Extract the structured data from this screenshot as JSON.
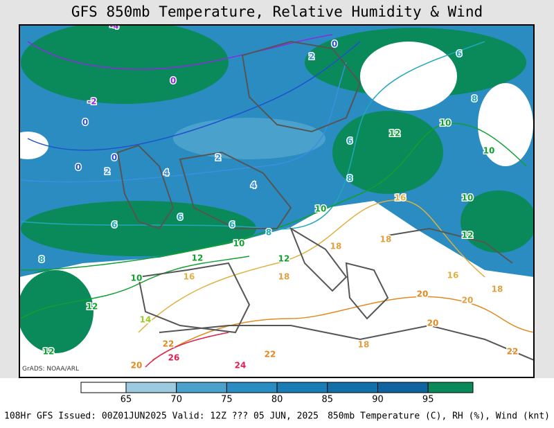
{
  "header": {
    "title": "GFS 850mb Temperature, Relative Humidity & Wind"
  },
  "map": {
    "credit": "GrADS: NOAA/ARL",
    "contour_labels": [
      {
        "text": "-4",
        "color": "#8a2be2"
      },
      {
        "text": "0",
        "color": "#8a2be2"
      },
      {
        "text": "-2",
        "color": "#8a2be2"
      },
      {
        "text": "0",
        "color": "#1e50d0"
      },
      {
        "text": "0",
        "color": "#1e50d0"
      },
      {
        "text": "0",
        "color": "#1e50d0"
      },
      {
        "text": "2",
        "color": "#3a90e0"
      },
      {
        "text": "4",
        "color": "#3a90e0"
      },
      {
        "text": "2",
        "color": "#3a90e0"
      },
      {
        "text": "4",
        "color": "#3a90e0"
      },
      {
        "text": "6",
        "color": "#20a8b8"
      },
      {
        "text": "6",
        "color": "#20a8b8"
      },
      {
        "text": "6",
        "color": "#20a8b8"
      },
      {
        "text": "8",
        "color": "#20a8b8"
      },
      {
        "text": "10",
        "color": "#10a030"
      },
      {
        "text": "12",
        "color": "#10a030"
      },
      {
        "text": "8",
        "color": "#20a8b8"
      },
      {
        "text": "10",
        "color": "#10a030"
      },
      {
        "text": "12",
        "color": "#10a030"
      },
      {
        "text": "14",
        "color": "#a0c820"
      },
      {
        "text": "12",
        "color": "#10a030"
      },
      {
        "text": "16",
        "color": "#e0b040"
      },
      {
        "text": "16",
        "color": "#e0b040"
      },
      {
        "text": "18",
        "color": "#e0a040"
      },
      {
        "text": "18",
        "color": "#e0a040"
      },
      {
        "text": "12",
        "color": "#10a030"
      },
      {
        "text": "18",
        "color": "#e0a040"
      },
      {
        "text": "10",
        "color": "#10a030"
      },
      {
        "text": "12",
        "color": "#10a030"
      },
      {
        "text": "10",
        "color": "#10a030"
      },
      {
        "text": "10",
        "color": "#10a030"
      },
      {
        "text": "10",
        "color": "#10a030"
      },
      {
        "text": "12",
        "color": "#10a030"
      },
      {
        "text": "8",
        "color": "#20a8b8"
      },
      {
        "text": "6",
        "color": "#20a8b8"
      },
      {
        "text": "6",
        "color": "#20a8b8"
      },
      {
        "text": "8",
        "color": "#20a8b8"
      },
      {
        "text": "2",
        "color": "#3a90e0"
      },
      {
        "text": "0",
        "color": "#1e50d0"
      },
      {
        "text": "20",
        "color": "#e08a20"
      },
      {
        "text": "20",
        "color": "#e0a040"
      },
      {
        "text": "20",
        "color": "#e08a20"
      },
      {
        "text": "22",
        "color": "#e08a20"
      },
      {
        "text": "22",
        "color": "#e08a20"
      },
      {
        "text": "18",
        "color": "#e0a040"
      },
      {
        "text": "24",
        "color": "#e02050"
      },
      {
        "text": "26",
        "color": "#e02050"
      },
      {
        "text": "22",
        "color": "#e08a20"
      },
      {
        "text": "20",
        "color": "#e08a20"
      },
      {
        "text": "16",
        "color": "#e0b040"
      },
      {
        "text": "18",
        "color": "#e0a040"
      }
    ]
  },
  "colorbar": {
    "ticks": [
      65,
      70,
      75,
      80,
      85,
      90,
      95
    ],
    "colors": [
      "#ffffff",
      "#9ccbe0",
      "#4aa2cc",
      "#2a8cc0",
      "#1a7cb4",
      "#136fa8",
      "#0f64a0",
      "#0a8a5a"
    ]
  },
  "footer": {
    "left": "108Hr GFS Issued: 00Z01JUN2025 Valid: 12Z ??? 05 JUN, 2025",
    "right": "850mb Temperature (C), RH (%), Wind (knt)"
  }
}
